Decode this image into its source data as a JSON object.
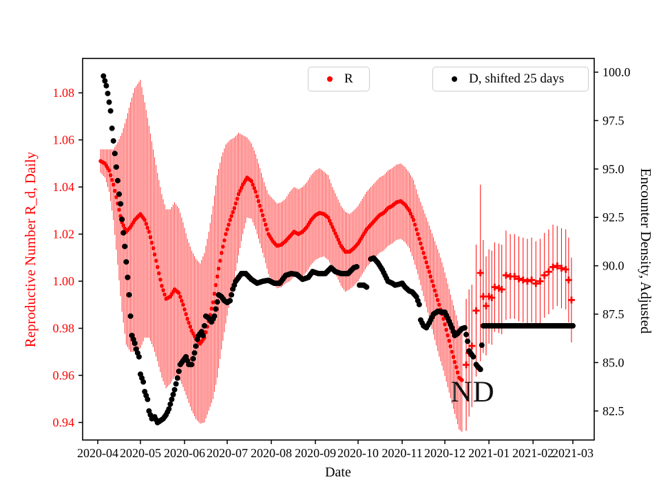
{
  "chart_data": {
    "type": "scatter",
    "title": "",
    "x_axis": {
      "label": "Date",
      "ticks": [
        "2020-04",
        "2020-05",
        "2020-06",
        "2020-07",
        "2020-08",
        "2020-09",
        "2020-10",
        "2020-11",
        "2020-12",
        "2021-01",
        "2021-02",
        "2021-03"
      ],
      "range": [
        "2020-03-21",
        "2021-03-16"
      ],
      "grid": false
    },
    "left_axis": {
      "label": "Reproductive Number R_d, Daily",
      "color": "#ff0000",
      "ticks": [
        1.08,
        1.06,
        1.04,
        1.02,
        1.0,
        0.98,
        0.96,
        0.94
      ],
      "range": [
        0.9325,
        1.0947
      ]
    },
    "right_axis": {
      "label": "Encounter Density, Adjusted",
      "color": "#000000",
      "ticks": [
        100.0,
        97.5,
        95.0,
        92.5,
        90.0,
        87.5,
        85.0,
        82.5
      ],
      "range": [
        81.0,
        100.7
      ]
    },
    "annotation": {
      "text": "ND",
      "x": "2020-12-08",
      "y_left_axis": 0.9475
    },
    "series_r": {
      "name": "R",
      "color": "#ff0000",
      "axis": "left",
      "marker": "dot-with-errorbar",
      "dense": [
        [
          "2020-04-03",
          1.051,
          0.005
        ],
        [
          "2020-04-06",
          1.05,
          0.006
        ],
        [
          "2020-04-09",
          1.047,
          0.009
        ],
        [
          "2020-04-12",
          1.041,
          0.015
        ],
        [
          "2020-04-15",
          1.033,
          0.026
        ],
        [
          "2020-04-18",
          1.025,
          0.038
        ],
        [
          "2020-04-21",
          1.021,
          0.048
        ],
        [
          "2020-04-24",
          1.023,
          0.053
        ],
        [
          "2020-04-27",
          1.026,
          0.056
        ],
        [
          "2020-05-01",
          1.0285,
          0.057
        ],
        [
          "2020-05-04",
          1.026,
          0.05
        ],
        [
          "2020-05-07",
          1.021,
          0.045
        ],
        [
          "2020-05-10",
          1.014,
          0.042
        ],
        [
          "2020-05-13",
          1.006,
          0.04
        ],
        [
          "2020-05-16",
          0.998,
          0.039
        ],
        [
          "2020-05-19",
          0.9925,
          0.038
        ],
        [
          "2020-05-22",
          0.9935,
          0.037
        ],
        [
          "2020-05-25",
          0.9965,
          0.037
        ],
        [
          "2020-05-28",
          0.995,
          0.036
        ],
        [
          "2020-05-31",
          0.99,
          0.035
        ],
        [
          "2020-06-03",
          0.984,
          0.034
        ],
        [
          "2020-06-06",
          0.979,
          0.034
        ],
        [
          "2020-06-09",
          0.9755,
          0.034
        ],
        [
          "2020-06-12",
          0.9735,
          0.034
        ],
        [
          "2020-06-15",
          0.976,
          0.036
        ],
        [
          "2020-06-18",
          0.983,
          0.038
        ],
        [
          "2020-06-21",
          0.991,
          0.041
        ],
        [
          "2020-06-24",
          1.002,
          0.043
        ],
        [
          "2020-06-27",
          1.012,
          0.041
        ],
        [
          "2020-06-30",
          1.02,
          0.038
        ],
        [
          "2020-07-03",
          1.026,
          0.034
        ],
        [
          "2020-07-06",
          1.031,
          0.03
        ],
        [
          "2020-07-09",
          1.037,
          0.026
        ],
        [
          "2020-07-12",
          1.041,
          0.021
        ],
        [
          "2020-07-15",
          1.044,
          0.017
        ],
        [
          "2020-07-18",
          1.0425,
          0.016
        ],
        [
          "2020-07-21",
          1.038,
          0.016
        ],
        [
          "2020-07-24",
          1.032,
          0.016
        ],
        [
          "2020-07-27",
          1.026,
          0.016
        ],
        [
          "2020-07-30",
          1.02,
          0.017
        ],
        [
          "2020-08-02",
          1.017,
          0.018
        ],
        [
          "2020-08-05",
          1.015,
          0.018
        ],
        [
          "2020-08-08",
          1.0155,
          0.018
        ],
        [
          "2020-08-11",
          1.017,
          0.018
        ],
        [
          "2020-08-14",
          1.019,
          0.019
        ],
        [
          "2020-08-17",
          1.021,
          0.019
        ],
        [
          "2020-08-20",
          1.02,
          0.019
        ],
        [
          "2020-08-23",
          1.021,
          0.019
        ],
        [
          "2020-08-26",
          1.023,
          0.019
        ],
        [
          "2020-08-29",
          1.026,
          0.019
        ],
        [
          "2020-09-01",
          1.028,
          0.019
        ],
        [
          "2020-09-04",
          1.029,
          0.019
        ],
        [
          "2020-09-07",
          1.0285,
          0.018
        ],
        [
          "2020-09-10",
          1.027,
          0.018
        ],
        [
          "2020-09-13",
          1.023,
          0.017
        ],
        [
          "2020-09-16",
          1.019,
          0.017
        ],
        [
          "2020-09-19",
          1.015,
          0.017
        ],
        [
          "2020-09-22",
          1.0125,
          0.017
        ],
        [
          "2020-09-25",
          1.0125,
          0.016
        ],
        [
          "2020-09-28",
          1.014,
          0.016
        ],
        [
          "2020-10-01",
          1.016,
          0.016
        ],
        [
          "2020-10-04",
          1.019,
          0.016
        ],
        [
          "2020-10-07",
          1.022,
          0.016
        ],
        [
          "2020-10-10",
          1.024,
          0.016
        ],
        [
          "2020-10-13",
          1.026,
          0.016
        ],
        [
          "2020-10-16",
          1.028,
          0.016
        ],
        [
          "2020-10-19",
          1.029,
          0.016
        ],
        [
          "2020-10-22",
          1.031,
          0.016
        ],
        [
          "2020-10-25",
          1.032,
          0.016
        ],
        [
          "2020-10-28",
          1.0335,
          0.016
        ],
        [
          "2020-10-31",
          1.034,
          0.016
        ],
        [
          "2020-11-03",
          1.0325,
          0.016
        ],
        [
          "2020-11-06",
          1.03,
          0.016
        ],
        [
          "2020-11-09",
          1.026,
          0.017
        ],
        [
          "2020-11-12",
          1.02,
          0.017
        ],
        [
          "2020-11-15",
          1.014,
          0.018
        ],
        [
          "2020-11-18",
          1.008,
          0.019
        ],
        [
          "2020-11-21",
          1.002,
          0.02
        ],
        [
          "2020-11-24",
          0.996,
          0.021
        ],
        [
          "2020-11-27",
          0.99,
          0.022
        ],
        [
          "2020-11-30",
          0.984,
          0.022
        ],
        [
          "2020-12-03",
          0.977,
          0.022
        ],
        [
          "2020-12-06",
          0.97,
          0.022
        ],
        [
          "2020-12-09",
          0.9635,
          0.022
        ],
        [
          "2020-12-11",
          0.959,
          0.022
        ],
        [
          "2020-12-13",
          0.958,
          0.022
        ]
      ],
      "sparse": [
        [
          "2020-12-16",
          0.9645,
          0.028
        ],
        [
          "2020-12-18",
          0.9695,
          0.027
        ],
        [
          "2020-12-20",
          0.9725,
          0.026
        ],
        [
          "2020-12-23",
          0.9875,
          0.028
        ],
        [
          "2020-12-26",
          1.0035,
          0.0375
        ],
        [
          "2020-12-28",
          0.9935,
          0.024
        ],
        [
          "2020-12-30",
          0.9895,
          0.021
        ],
        [
          "2021-01-01",
          0.9935,
          0.02
        ],
        [
          "2021-01-03",
          0.993,
          0.02
        ],
        [
          "2021-01-05",
          0.9975,
          0.019
        ],
        [
          "2021-01-08",
          0.997,
          0.019
        ],
        [
          "2021-01-10",
          0.9965,
          0.019
        ],
        [
          "2021-01-13",
          1.0025,
          0.019
        ],
        [
          "2021-01-16",
          1.002,
          0.018
        ],
        [
          "2021-01-19",
          1.002,
          0.018
        ],
        [
          "2021-01-22",
          1.001,
          0.018
        ],
        [
          "2021-01-25",
          1.0005,
          0.018
        ],
        [
          "2021-01-28",
          1.0,
          0.018
        ],
        [
          "2021-01-31",
          1.0005,
          0.018
        ],
        [
          "2021-02-03",
          0.999,
          0.018
        ],
        [
          "2021-02-06",
          1.0,
          0.018
        ],
        [
          "2021-02-09",
          1.0025,
          0.018
        ],
        [
          "2021-02-12",
          1.004,
          0.018
        ],
        [
          "2021-02-15",
          1.006,
          0.018
        ],
        [
          "2021-02-18",
          1.0065,
          0.017
        ],
        [
          "2021-02-21",
          1.0055,
          0.017
        ],
        [
          "2021-02-24",
          1.005,
          0.017
        ],
        [
          "2021-02-26",
          1.0005,
          0.018
        ],
        [
          "2021-02-28",
          0.992,
          0.018
        ]
      ]
    },
    "series_d": {
      "name": "D, shifted 25 days",
      "color": "#000000",
      "axis": "right",
      "marker": "dot",
      "segments": [
        [
          [
            "2020-04-05",
            99.8
          ],
          [
            "2020-04-07",
            99.3
          ],
          [
            "2020-04-08",
            98.9
          ],
          [
            "2020-04-10",
            98.0
          ],
          [
            "2020-04-11",
            97.1
          ],
          [
            "2020-04-13",
            95.8
          ],
          [
            "2020-04-14",
            95.1
          ],
          [
            "2020-04-16",
            93.7
          ],
          [
            "2020-04-17",
            93.2
          ],
          [
            "2020-04-18",
            92.4
          ],
          [
            "2020-04-19",
            91.7
          ],
          [
            "2020-04-20",
            91.0
          ],
          [
            "2020-04-21",
            90.2
          ],
          [
            "2020-04-22",
            89.4
          ],
          [
            "2020-04-23",
            88.5
          ],
          [
            "2020-04-24",
            87.4
          ],
          [
            "2020-04-25",
            86.4
          ],
          [
            "2020-04-27",
            86.0
          ],
          [
            "2020-04-28",
            85.7
          ],
          [
            "2020-04-30",
            85.3
          ],
          [
            "2020-05-01",
            84.4
          ],
          [
            "2020-05-03",
            84.0
          ],
          [
            "2020-05-04",
            83.5
          ],
          [
            "2020-05-06",
            83.1
          ],
          [
            "2020-05-07",
            82.5
          ],
          [
            "2020-05-09",
            82.1
          ],
          [
            "2020-05-11",
            82.2
          ],
          [
            "2020-05-13",
            81.9
          ],
          [
            "2020-05-15",
            82.0
          ],
          [
            "2020-05-17",
            82.1
          ],
          [
            "2020-05-19",
            82.3
          ],
          [
            "2020-05-21",
            82.6
          ],
          [
            "2020-05-23",
            83.1
          ],
          [
            "2020-05-25",
            83.6
          ],
          [
            "2020-05-27",
            84.2
          ],
          [
            "2020-05-29",
            84.9
          ],
          [
            "2020-05-31",
            85.1
          ],
          [
            "2020-06-02",
            85.3
          ],
          [
            "2020-06-04",
            84.9
          ],
          [
            "2020-06-06",
            84.9
          ],
          [
            "2020-06-08",
            85.5
          ],
          [
            "2020-06-10",
            86.2
          ],
          [
            "2020-06-11",
            86.4
          ],
          [
            "2020-06-13",
            86.6
          ],
          [
            "2020-06-14",
            86.4
          ],
          [
            "2020-06-16",
            87.4
          ],
          [
            "2020-06-18",
            87.3
          ],
          [
            "2020-06-20",
            87.1
          ],
          [
            "2020-06-22",
            87.4
          ],
          [
            "2020-06-25",
            88.5
          ],
          [
            "2020-06-27",
            88.4
          ],
          [
            "2020-06-29",
            88.2
          ],
          [
            "2020-07-01",
            88.1
          ],
          [
            "2020-07-03",
            88.2
          ],
          [
            "2020-07-05",
            88.8
          ],
          [
            "2020-07-07",
            89.2
          ],
          [
            "2020-07-09",
            89.4
          ],
          [
            "2020-07-11",
            89.6
          ],
          [
            "2020-07-14",
            89.6
          ],
          [
            "2020-07-18",
            89.3
          ],
          [
            "2020-07-22",
            89.1
          ],
          [
            "2020-07-26",
            89.2
          ],
          [
            "2020-07-30",
            89.25
          ],
          [
            "2020-08-03",
            89.1
          ],
          [
            "2020-08-07",
            89.1
          ],
          [
            "2020-08-11",
            89.5
          ],
          [
            "2020-08-15",
            89.6
          ],
          [
            "2020-08-19",
            89.55
          ],
          [
            "2020-08-23",
            89.3
          ],
          [
            "2020-08-27",
            89.4
          ],
          [
            "2020-08-30",
            89.7
          ],
          [
            "2020-09-03",
            89.6
          ],
          [
            "2020-09-08",
            89.6
          ],
          [
            "2020-09-12",
            89.9
          ],
          [
            "2020-09-15",
            89.7
          ],
          [
            "2020-09-19",
            89.6
          ],
          [
            "2020-09-24",
            89.6
          ],
          [
            "2020-09-28",
            89.9
          ],
          [
            "2020-09-30",
            89.95
          ]
        ],
        [
          [
            "2020-10-02",
            89.0
          ],
          [
            "2020-10-05",
            89.0
          ],
          [
            "2020-10-07",
            88.9
          ]
        ],
        [
          [
            "2020-10-10",
            90.35
          ],
          [
            "2020-10-12",
            90.4
          ],
          [
            "2020-10-15",
            90.15
          ],
          [
            "2020-10-18",
            89.8
          ],
          [
            "2020-10-20",
            89.5
          ],
          [
            "2020-10-22",
            89.2
          ],
          [
            "2020-10-25",
            89.1
          ],
          [
            "2020-10-27",
            89.0
          ],
          [
            "2020-10-30",
            89.05
          ],
          [
            "2020-11-01",
            89.1
          ],
          [
            "2020-11-03",
            88.9
          ],
          [
            "2020-11-06",
            88.7
          ],
          [
            "2020-11-08",
            88.65
          ],
          [
            "2020-11-11",
            88.4
          ],
          [
            "2020-11-13",
            88.0
          ],
          [
            "2020-11-14",
            87.2
          ],
          [
            "2020-11-16",
            86.9
          ],
          [
            "2020-11-18",
            86.8
          ],
          [
            "2020-11-20",
            87.05
          ],
          [
            "2020-11-23",
            87.5
          ],
          [
            "2020-11-26",
            87.65
          ],
          [
            "2020-11-29",
            87.6
          ],
          [
            "2020-12-01",
            87.6
          ],
          [
            "2020-12-03",
            87.3
          ],
          [
            "2020-12-06",
            86.8
          ],
          [
            "2020-12-08",
            86.4
          ],
          [
            "2020-12-10",
            86.5
          ],
          [
            "2020-12-11",
            86.6
          ],
          [
            "2020-12-13",
            86.75
          ],
          [
            "2020-12-15",
            86.8
          ],
          [
            "2020-12-17",
            86.1
          ],
          [
            "2020-12-18",
            85.6
          ],
          [
            "2020-12-21",
            85.3
          ]
        ],
        [
          [
            "2020-12-23",
            84.9
          ],
          [
            "2020-12-24",
            84.8
          ],
          [
            "2020-12-26",
            84.65
          ]
        ],
        [
          [
            "2020-12-27",
            85.9
          ]
        ],
        [
          [
            "2020-12-28",
            86.9
          ],
          [
            "2021-03-01",
            86.9
          ]
        ]
      ]
    },
    "legend": [
      {
        "label": "R",
        "color": "#ff0000",
        "marker": "dot"
      },
      {
        "label": "D, shifted 25 days",
        "color": "#000000",
        "marker": "dot"
      }
    ]
  }
}
